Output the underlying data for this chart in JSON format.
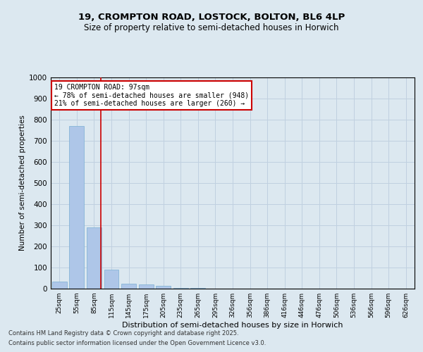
{
  "title1": "19, CROMPTON ROAD, LOSTOCK, BOLTON, BL6 4LP",
  "title2": "Size of property relative to semi-detached houses in Horwich",
  "xlabel": "Distribution of semi-detached houses by size in Horwich",
  "ylabel": "Number of semi-detached properties",
  "categories": [
    "25sqm",
    "55sqm",
    "85sqm",
    "115sqm",
    "145sqm",
    "175sqm",
    "205sqm",
    "235sqm",
    "265sqm",
    "295sqm",
    "326sqm",
    "356sqm",
    "386sqm",
    "416sqm",
    "446sqm",
    "476sqm",
    "506sqm",
    "536sqm",
    "566sqm",
    "596sqm",
    "626sqm"
  ],
  "values": [
    35,
    770,
    290,
    90,
    23,
    20,
    13,
    5,
    2,
    0,
    0,
    0,
    0,
    0,
    0,
    0,
    0,
    0,
    0,
    0,
    0
  ],
  "bar_color": "#aec6e8",
  "bar_edge_color": "#7aafd4",
  "vline_color": "#cc0000",
  "vline_pos": 2.4,
  "annotation_title": "19 CROMPTON ROAD: 97sqm",
  "annotation_line1": "← 78% of semi-detached houses are smaller (948)",
  "annotation_line2": "21% of semi-detached houses are larger (260) →",
  "annotation_box_color": "#cc0000",
  "ylim": [
    0,
    1000
  ],
  "yticks": [
    0,
    100,
    200,
    300,
    400,
    500,
    600,
    700,
    800,
    900,
    1000
  ],
  "grid_color": "#c0d0e0",
  "bg_color": "#dce8f0",
  "footer1": "Contains HM Land Registry data © Crown copyright and database right 2025.",
  "footer2": "Contains public sector information licensed under the Open Government Licence v3.0."
}
